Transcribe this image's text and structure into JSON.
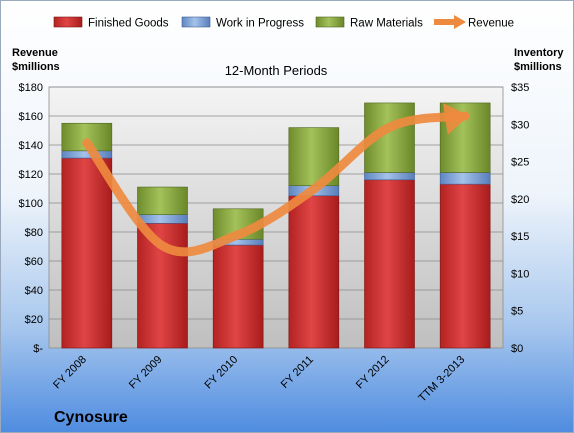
{
  "chart_data": {
    "type": "bar",
    "subtitle": "12-Month Periods",
    "company": "Cynosure",
    "categories": [
      "FY 2008",
      "FY 2009",
      "FY 2010",
      "FY 2011",
      "FY 2012",
      "TTM 3-2013"
    ],
    "y_left": {
      "label_line1": "Revenue",
      "label_line2": "$millions",
      "range": [
        0,
        180
      ],
      "ticks": [
        0,
        20,
        40,
        60,
        80,
        100,
        120,
        140,
        160,
        180
      ],
      "tick_labels": [
        "$-",
        "$20",
        "$40",
        "$60",
        "$80",
        "$100",
        "$120",
        "$140",
        "$160",
        "$180"
      ]
    },
    "y_right": {
      "label_line1": "Inventory",
      "label_line2": "$millions",
      "range": [
        0,
        35
      ],
      "ticks": [
        0,
        5,
        10,
        15,
        20,
        25,
        30,
        35
      ],
      "tick_labels": [
        "$0",
        "$5",
        "$10",
        "$15",
        "$20",
        "$25",
        "$30",
        "$35"
      ]
    },
    "series": [
      {
        "name": "Finished Goods",
        "type": "stacked-bar",
        "axis": "left",
        "color": "#d93a3a",
        "values": [
          131,
          86,
          71,
          105,
          116,
          113
        ]
      },
      {
        "name": "Work in Progress",
        "type": "stacked-bar",
        "axis": "left",
        "color": "#7ea3d8",
        "values": [
          5,
          6,
          4,
          7,
          5,
          8
        ]
      },
      {
        "name": "Raw Materials",
        "type": "stacked-bar",
        "axis": "left",
        "color": "#92b04a",
        "values": [
          19,
          19,
          21,
          40,
          48,
          48
        ]
      },
      {
        "name": "Revenue",
        "type": "line",
        "axis": "right",
        "color": "#ee8a3f",
        "values": [
          27.5,
          13.7,
          15.2,
          21.3,
          29.6,
          31.1
        ]
      }
    ],
    "legend_position": "top",
    "grid": true
  }
}
